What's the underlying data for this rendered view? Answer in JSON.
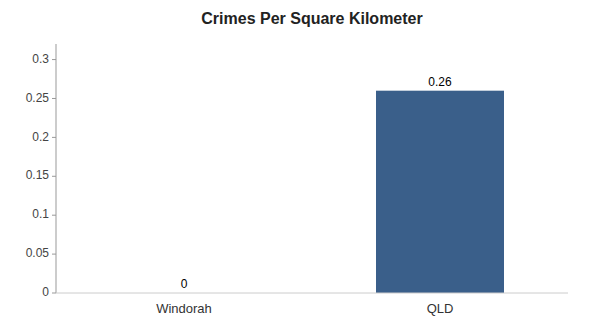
{
  "chart_data": {
    "type": "bar",
    "title": "Crimes Per Square Kilometer",
    "categories": [
      "Windorah",
      "QLD"
    ],
    "values": [
      0,
      0.26
    ],
    "color": "#3a5f8a",
    "ylim": [
      0,
      0.32
    ],
    "yticks": [
      0,
      0.05,
      0.1,
      0.15,
      0.2,
      0.25,
      0.3
    ],
    "data_labels": true,
    "grid": false
  }
}
